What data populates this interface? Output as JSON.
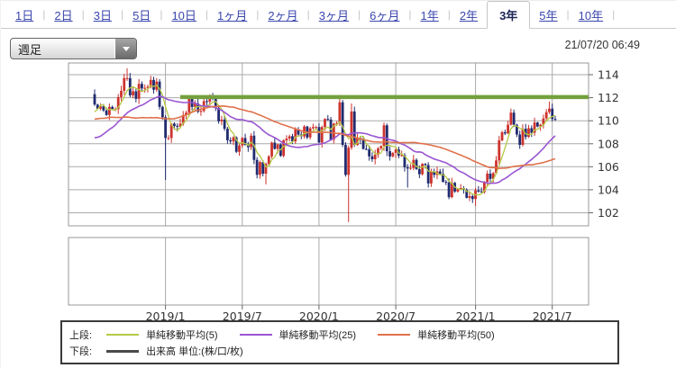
{
  "tabs": [
    {
      "id": "1d",
      "label": "1日",
      "active": false
    },
    {
      "id": "2d",
      "label": "2日",
      "active": false
    },
    {
      "id": "3d",
      "label": "3日",
      "active": false
    },
    {
      "id": "5d",
      "label": "5日",
      "active": false
    },
    {
      "id": "10d",
      "label": "10日",
      "active": false
    },
    {
      "id": "1mo",
      "label": "1ヶ月",
      "active": false
    },
    {
      "id": "2mo",
      "label": "2ヶ月",
      "active": false
    },
    {
      "id": "3mo",
      "label": "3ヶ月",
      "active": false
    },
    {
      "id": "6mo",
      "label": "6ヶ月",
      "active": false
    },
    {
      "id": "1y",
      "label": "1年",
      "active": false
    },
    {
      "id": "2y",
      "label": "2年",
      "active": false
    },
    {
      "id": "3y",
      "label": "3年",
      "active": true
    },
    {
      "id": "5y",
      "label": "5年",
      "active": false
    },
    {
      "id": "10y",
      "label": "10年",
      "active": false
    }
  ],
  "toolbar": {
    "interval_value": "週足",
    "timestamp": "21/07/20 06:49"
  },
  "legend": {
    "upper_row_label": "上段:",
    "lower_row_label": "下段:",
    "upper_items": [
      {
        "label": "単純移動平均(5)"
      },
      {
        "label": "単純移動平均(25)"
      },
      {
        "label": "単純移動平均(50)"
      }
    ],
    "lower_item_label": "出来高 単位:(株/口/枚)",
    "lower_swatch_color": "#4a4a4a"
  },
  "chart_data": {
    "type": "candlestick",
    "interval": "weekly",
    "title": "",
    "xlabel": "",
    "ylabel": "",
    "grid": true,
    "legend_position": "bottom",
    "y_ticks": [
      102,
      104,
      106,
      108,
      110,
      112,
      114
    ],
    "ylim": [
      100.9,
      115.0
    ],
    "x_ticks": [
      {
        "label": "2019/1",
        "index": 24
      },
      {
        "label": "2019/7",
        "index": 50
      },
      {
        "label": "2020/1",
        "index": 76
      },
      {
        "label": "2020/7",
        "index": 102
      },
      {
        "label": "2021/1",
        "index": 129
      },
      {
        "label": "2021/7",
        "index": 155
      }
    ],
    "pre_closes": [
      110.7,
      109.2,
      109.6,
      110.25,
      109.8,
      107.8,
      110.8,
      112.0,
      112.5,
      112.65,
      111.8,
      113.5,
      113.7,
      114.05,
      113.55,
      112.1,
      111.5,
      113.4,
      113.5,
      112.6,
      113.3,
      112.7,
      113.05,
      111.05,
      110.8,
      108.6,
      110.1,
      108.8,
      106.3,
      105.75,
      105.9,
      106.8,
      106.0,
      104.75,
      106.3,
      107.0,
      107.35,
      107.65,
      109.05,
      109.1,
      109.4,
      110.75,
      109.4,
      108.75,
      109.55,
      110.45,
      110.0,
      109.45,
      110.75,
      112.3
    ],
    "closes": [
      111.4,
      111.05,
      111.25,
      110.9,
      110.5,
      111.2,
      111.0,
      111.0,
      112.05,
      112.6,
      113.7,
      113.7,
      112.2,
      112.55,
      111.9,
      113.2,
      112.8,
      112.85,
      112.95,
      113.55,
      112.7,
      113.4,
      111.2,
      110.3,
      108.5,
      108.5,
      109.75,
      109.55,
      109.5,
      109.75,
      110.5,
      110.7,
      111.9,
      111.2,
      111.5,
      110.8,
      110.85,
      111.7,
      111.65,
      112.0,
      111.9,
      111.1,
      109.95,
      110.1,
      109.3,
      108.3,
      108.2,
      108.55,
      107.3,
      107.85,
      108.5,
      107.9,
      107.7,
      108.7,
      106.6,
      105.3,
      106.4,
      105.4,
      106.25,
      106.9,
      108.1,
      107.55,
      107.95,
      106.95,
      108.3,
      108.45,
      108.65,
      108.2,
      109.25,
      108.8,
      108.65,
      109.5,
      108.55,
      109.35,
      109.45,
      109.45,
      108.1,
      109.45,
      110.15,
      110.1,
      108.35,
      109.75,
      109.8,
      111.6,
      107.9,
      105.3,
      107.65,
      110.8,
      107.9,
      108.5,
      108.4,
      107.55,
      107.5,
      106.9,
      106.65,
      107.05,
      107.6,
      107.8,
      109.6,
      107.35,
      106.9,
      107.2,
      107.5,
      106.95,
      107.0,
      105.95,
      105.85,
      105.9,
      106.6,
      105.8,
      105.35,
      106.25,
      106.15,
      104.55,
      105.6,
      105.3,
      105.6,
      105.4,
      104.7,
      104.65,
      103.35,
      104.6,
      103.85,
      104.05,
      104.15,
      104.0,
      103.3,
      103.45,
      103.2,
      103.95,
      103.85,
      103.8,
      104.7,
      105.4,
      104.95,
      105.45,
      106.55,
      108.3,
      109.0,
      108.9,
      109.65,
      110.7,
      109.65,
      108.8,
      107.9,
      109.3,
      108.6,
      109.35,
      108.95,
      109.85,
      109.5,
      109.65,
      110.2,
      110.75,
      111.05,
      110.15,
      110.1
    ],
    "wick_overrides": {
      "11": {
        "h": 114.55
      },
      "24": {
        "l": 104.85
      },
      "58": {
        "l": 104.46
      },
      "77": {
        "l": 107.65
      },
      "83": {
        "h": 112.23
      },
      "86": {
        "l": 101.19
      },
      "87": {
        "h": 111.5
      },
      "98": {
        "h": 109.85
      },
      "106": {
        "l": 104.19
      },
      "120": {
        "l": 103.18
      },
      "129": {
        "l": 102.59
      },
      "142": {
        "h": 110.97
      },
      "154": {
        "h": 111.66
      }
    },
    "sma": [
      {
        "period": 5,
        "color": "#b5c944"
      },
      {
        "period": 25,
        "color": "#9a55d2"
      },
      {
        "period": 50,
        "color": "#e0714b"
      }
    ],
    "trendline": {
      "value": 112.05,
      "start_index": 29,
      "color": "#74a03e"
    },
    "colors": {
      "up": "#ce332e",
      "down": "#202b70",
      "grid": "#aaaaaa",
      "border": "#999999",
      "axis_text": "#333333",
      "tick": "#666666"
    },
    "volume_panel": {
      "label": "出来高",
      "empty": true
    }
  }
}
